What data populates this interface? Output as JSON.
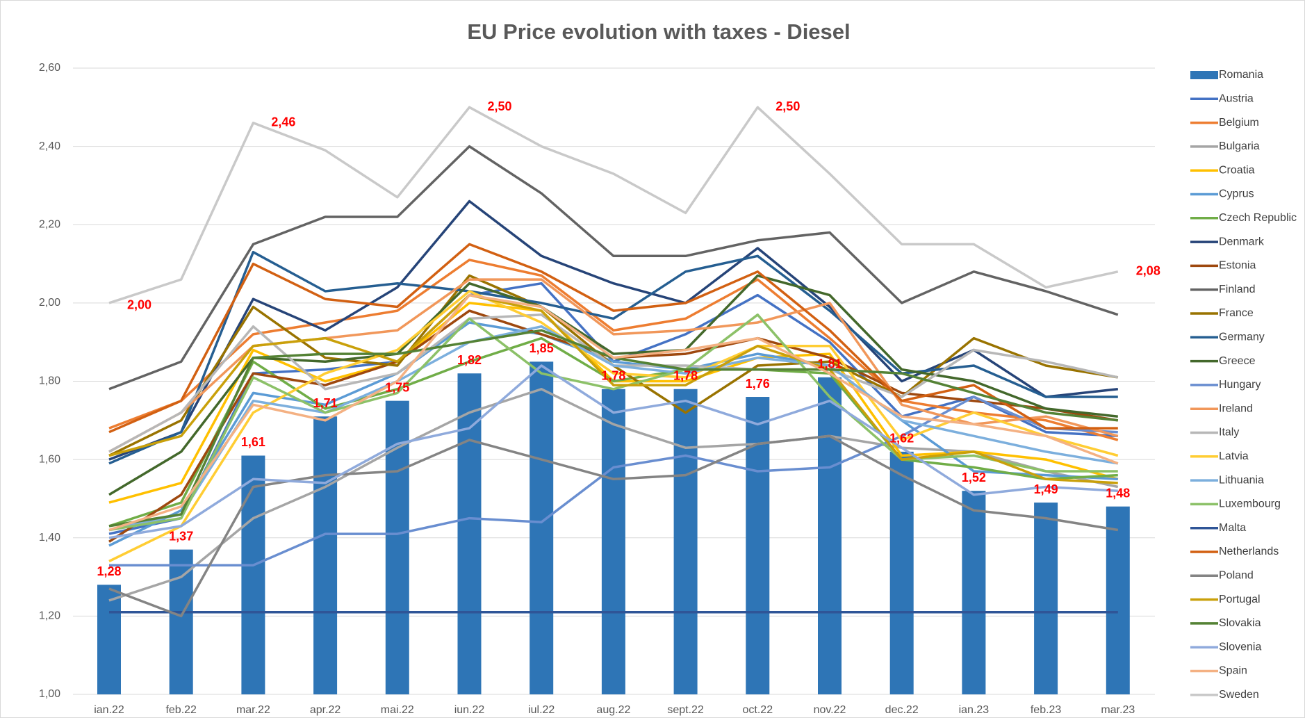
{
  "chart_data": {
    "type": "bar",
    "title": "EU Price evolution with taxes - Diesel",
    "categories": [
      "ian.22",
      "feb.22",
      "mar.22",
      "apr.22",
      "mai.22",
      "iun.22",
      "iul.22",
      "aug.22",
      "sept.22",
      "oct.22",
      "nov.22",
      "dec.22",
      "ian.23",
      "feb.23",
      "mar.23"
    ],
    "ylim": [
      1.0,
      2.6
    ],
    "yticks": [
      {
        "value": 1.0,
        "label": "1,00"
      },
      {
        "value": 1.2,
        "label": "1,20"
      },
      {
        "value": 1.4,
        "label": "1,40"
      },
      {
        "value": 1.6,
        "label": "1,60"
      },
      {
        "value": 1.8,
        "label": "1,80"
      },
      {
        "value": 2.0,
        "label": "2,00"
      },
      {
        "value": 2.2,
        "label": "2,20"
      },
      {
        "value": 2.4,
        "label": "2,40"
      },
      {
        "value": 2.6,
        "label": "2,60"
      }
    ],
    "grid": true,
    "legend": "right",
    "series": [
      {
        "name": "Romania",
        "type": "bar",
        "color": "#2e75b6",
        "values": [
          1.28,
          1.37,
          1.61,
          1.71,
          1.75,
          1.82,
          1.85,
          1.78,
          1.78,
          1.76,
          1.81,
          1.62,
          1.52,
          1.49,
          1.48
        ],
        "value_labels": [
          "1,28",
          "1,37",
          "1,61",
          "1,71",
          "1,75",
          "1,82",
          "1,85",
          "1,78",
          "1,78",
          "1,76",
          "1,81",
          "1,62",
          "1,52",
          "1,49",
          "1,48"
        ]
      },
      {
        "name": "Austria",
        "type": "line",
        "color": "#4472c4",
        "values": [
          1.41,
          1.45,
          1.82,
          1.83,
          1.85,
          2.02,
          2.05,
          1.85,
          1.92,
          2.02,
          1.9,
          1.71,
          1.76,
          1.67,
          1.66
        ]
      },
      {
        "name": "Belgium",
        "type": "line",
        "color": "#ed7d31",
        "values": [
          1.68,
          1.75,
          1.92,
          1.95,
          1.98,
          2.11,
          2.07,
          1.93,
          1.96,
          2.06,
          1.91,
          1.75,
          1.72,
          1.7,
          1.65
        ]
      },
      {
        "name": "Bulgaria",
        "type": "line",
        "color": "#a5a5a5",
        "values": [
          1.24,
          1.3,
          1.45,
          1.53,
          1.63,
          1.72,
          1.78,
          1.69,
          1.63,
          1.64,
          1.66,
          1.63,
          1.62,
          1.57,
          1.53
        ]
      },
      {
        "name": "Croatia",
        "type": "line",
        "color": "#ffc000",
        "values": [
          1.49,
          1.54,
          1.88,
          1.8,
          1.85,
          2.0,
          1.98,
          1.8,
          1.8,
          1.86,
          1.87,
          1.61,
          1.62,
          1.6,
          1.55
        ]
      },
      {
        "name": "Cyprus",
        "type": "line",
        "color": "#5b9bd5",
        "values": [
          1.38,
          1.47,
          1.77,
          1.74,
          1.82,
          1.95,
          1.92,
          1.85,
          1.83,
          1.87,
          1.84,
          1.7,
          1.57,
          1.56,
          1.55
        ]
      },
      {
        "name": "Czech Republic",
        "type": "line",
        "color": "#70ad47",
        "values": [
          1.43,
          1.49,
          1.85,
          1.73,
          1.78,
          1.85,
          1.91,
          1.8,
          1.83,
          1.83,
          1.82,
          1.6,
          1.58,
          1.55,
          1.56
        ]
      },
      {
        "name": "Denmark",
        "type": "line",
        "color": "#264478",
        "values": [
          1.6,
          1.67,
          2.01,
          1.93,
          2.04,
          2.26,
          2.12,
          2.05,
          2.0,
          2.14,
          1.99,
          1.8,
          1.88,
          1.76,
          1.78
        ]
      },
      {
        "name": "Estonia",
        "type": "line",
        "color": "#9e480e",
        "values": [
          1.39,
          1.51,
          1.82,
          1.79,
          1.85,
          1.98,
          1.92,
          1.86,
          1.87,
          1.91,
          1.86,
          1.77,
          1.75,
          1.73,
          1.7
        ]
      },
      {
        "name": "Finland",
        "type": "line",
        "color": "#636363",
        "values": [
          1.78,
          1.85,
          2.15,
          2.22,
          2.22,
          2.4,
          2.28,
          2.12,
          2.12,
          2.16,
          2.18,
          2.0,
          2.08,
          2.03,
          1.97
        ]
      },
      {
        "name": "France",
        "type": "line",
        "color": "#997300",
        "values": [
          1.61,
          1.7,
          1.99,
          1.86,
          1.84,
          2.07,
          1.99,
          1.84,
          1.72,
          1.84,
          1.85,
          1.76,
          1.91,
          1.84,
          1.81
        ]
      },
      {
        "name": "Germany",
        "type": "line",
        "color": "#255e91",
        "values": [
          1.59,
          1.67,
          2.13,
          2.03,
          2.05,
          2.03,
          2.0,
          1.96,
          2.08,
          2.12,
          1.98,
          1.82,
          1.84,
          1.76,
          1.76
        ]
      },
      {
        "name": "Greece",
        "type": "line",
        "color": "#43682b",
        "values": [
          1.51,
          1.62,
          1.86,
          1.85,
          1.87,
          2.05,
          1.99,
          1.87,
          1.88,
          2.07,
          2.02,
          1.83,
          1.8,
          1.73,
          1.71
        ]
      },
      {
        "name": "Hungary",
        "type": "line",
        "color": "#698ed0",
        "values": [
          1.33,
          1.33,
          1.33,
          1.41,
          1.41,
          1.45,
          1.44,
          1.58,
          1.61,
          1.57,
          1.58,
          1.66,
          1.76,
          1.68,
          1.67
        ]
      },
      {
        "name": "Ireland",
        "type": "line",
        "color": "#f1975a",
        "values": [
          1.62,
          1.72,
          1.89,
          1.91,
          1.93,
          2.06,
          2.06,
          1.92,
          1.93,
          1.95,
          2.0,
          1.74,
          1.69,
          1.71,
          1.66
        ]
      },
      {
        "name": "Italy",
        "type": "line",
        "color": "#b7b7b7",
        "values": [
          1.62,
          1.72,
          1.94,
          1.78,
          1.82,
          1.96,
          1.97,
          1.84,
          1.84,
          1.83,
          1.83,
          1.76,
          1.88,
          1.85,
          1.81
        ]
      },
      {
        "name": "Latvia",
        "type": "line",
        "color": "#ffcd33",
        "values": [
          1.34,
          1.43,
          1.72,
          1.82,
          1.88,
          2.03,
          1.95,
          1.82,
          1.81,
          1.89,
          1.89,
          1.65,
          1.72,
          1.66,
          1.61
        ]
      },
      {
        "name": "Lithuania",
        "type": "line",
        "color": "#7cafdd",
        "values": [
          1.42,
          1.46,
          1.75,
          1.72,
          1.8,
          1.9,
          1.94,
          1.84,
          1.82,
          1.86,
          1.84,
          1.7,
          1.66,
          1.62,
          1.59
        ]
      },
      {
        "name": "Luxembourg",
        "type": "line",
        "color": "#8cc168",
        "values": [
          1.42,
          1.45,
          1.81,
          1.72,
          1.77,
          1.96,
          1.82,
          1.78,
          1.83,
          1.97,
          1.76,
          1.6,
          1.61,
          1.57,
          1.57
        ]
      },
      {
        "name": "Malta",
        "type": "line",
        "color": "#2f5597",
        "values": [
          1.21,
          1.21,
          1.21,
          1.21,
          1.21,
          1.21,
          1.21,
          1.21,
          1.21,
          1.21,
          1.21,
          1.21,
          1.21,
          1.21,
          1.21
        ]
      },
      {
        "name": "Netherlands",
        "type": "line",
        "color": "#d26012",
        "values": [
          1.67,
          1.75,
          2.1,
          2.01,
          1.99,
          2.15,
          2.08,
          1.98,
          2.0,
          2.08,
          1.93,
          1.75,
          1.79,
          1.68,
          1.68
        ]
      },
      {
        "name": "Poland",
        "type": "line",
        "color": "#848484",
        "values": [
          1.27,
          1.2,
          1.53,
          1.56,
          1.57,
          1.65,
          1.6,
          1.55,
          1.56,
          1.64,
          1.66,
          1.56,
          1.47,
          1.45,
          1.42
        ]
      },
      {
        "name": "Portugal",
        "type": "line",
        "color": "#c9a00a",
        "values": [
          1.61,
          1.66,
          1.89,
          1.91,
          1.85,
          2.02,
          1.98,
          1.79,
          1.79,
          1.89,
          1.83,
          1.6,
          1.62,
          1.55,
          1.54
        ]
      },
      {
        "name": "Slovakia",
        "type": "line",
        "color": "#548235",
        "values": [
          1.43,
          1.46,
          1.86,
          1.87,
          1.87,
          1.9,
          1.93,
          1.86,
          1.83,
          1.83,
          1.83,
          1.82,
          1.77,
          1.72,
          1.7
        ]
      },
      {
        "name": "Slovenia",
        "type": "line",
        "color": "#8faadc",
        "values": [
          1.4,
          1.43,
          1.55,
          1.54,
          1.64,
          1.68,
          1.84,
          1.72,
          1.75,
          1.69,
          1.75,
          1.63,
          1.51,
          1.53,
          1.52
        ]
      },
      {
        "name": "Spain",
        "type": "line",
        "color": "#f4b183",
        "values": [
          1.42,
          1.48,
          1.74,
          1.7,
          1.8,
          2.02,
          1.99,
          1.86,
          1.88,
          1.91,
          1.82,
          1.71,
          1.69,
          1.66,
          1.59
        ]
      },
      {
        "name": "Sweden",
        "type": "line",
        "color": "#c9c9c9",
        "values": [
          2.0,
          2.06,
          2.46,
          2.39,
          2.27,
          2.5,
          2.4,
          2.33,
          2.23,
          2.5,
          2.33,
          2.15,
          2.15,
          2.04,
          2.08
        ],
        "value_labels": [
          "2,00",
          null,
          "2,46",
          null,
          null,
          "2,50",
          null,
          null,
          null,
          "2,50",
          null,
          null,
          null,
          null,
          "2,08"
        ]
      }
    ]
  }
}
